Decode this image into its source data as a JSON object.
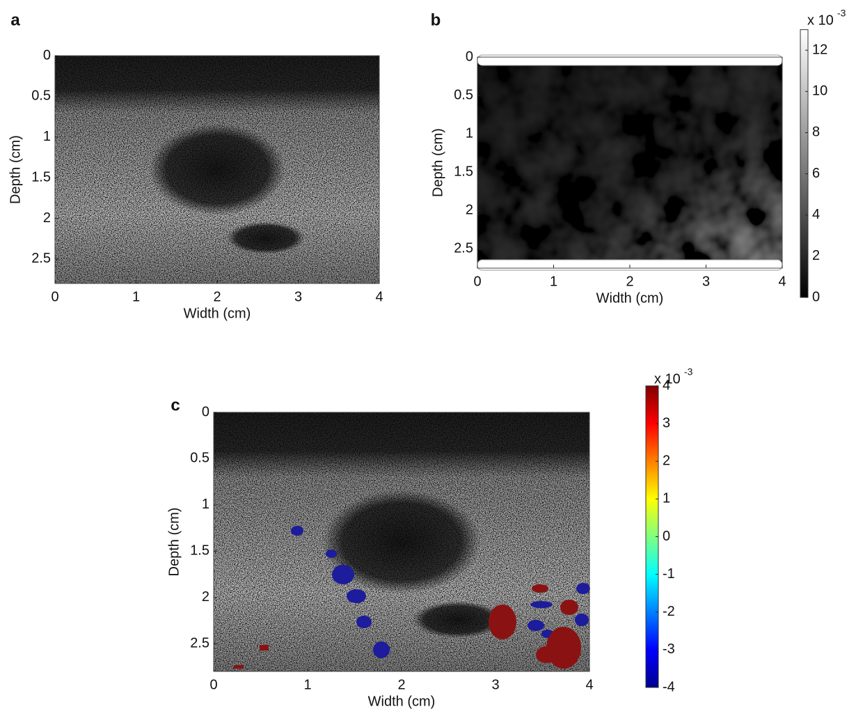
{
  "chart_data": [
    {
      "type": "image",
      "panel_label": "a",
      "xlabel": "Width (cm)",
      "ylabel": "Depth (cm)",
      "colormap": "gray",
      "xlim": [
        0,
        4
      ],
      "ylim": [
        0,
        2.8
      ],
      "y_reversed": true,
      "xticks": [
        0,
        1,
        2,
        3,
        4
      ],
      "yticks": [
        0,
        0.5,
        1,
        1.5,
        2,
        2.5
      ]
    },
    {
      "type": "image",
      "panel_label": "b",
      "xlabel": "Width (cm)",
      "ylabel": "Depth (cm)",
      "colormap": "gray",
      "xlim": [
        0,
        4
      ],
      "ylim": [
        0,
        2.75
      ],
      "y_reversed": true,
      "xticks": [
        0,
        1,
        2,
        3,
        4
      ],
      "yticks": [
        0,
        0.5,
        1,
        1.5,
        2,
        2.5
      ],
      "colorbar": {
        "label": "x 10",
        "exponent": "-3",
        "lim": [
          0,
          13
        ],
        "ticks": [
          0,
          2,
          4,
          6,
          8,
          10,
          12
        ]
      }
    },
    {
      "type": "image",
      "panel_label": "c",
      "xlabel": "Width (cm)",
      "ylabel": "Depth (cm)",
      "colormap": "jet",
      "xlim": [
        0,
        4
      ],
      "ylim": [
        0,
        2.8
      ],
      "y_reversed": true,
      "xticks": [
        0,
        1,
        2,
        3,
        4
      ],
      "yticks": [
        0,
        0.5,
        1,
        1.5,
        2,
        2.5
      ],
      "colorbar": {
        "label": "x 10",
        "exponent": "-3",
        "lim": [
          -4,
          4
        ],
        "ticks": [
          -4,
          -3,
          -2,
          -1,
          0,
          1,
          2,
          3,
          4
        ]
      }
    }
  ]
}
